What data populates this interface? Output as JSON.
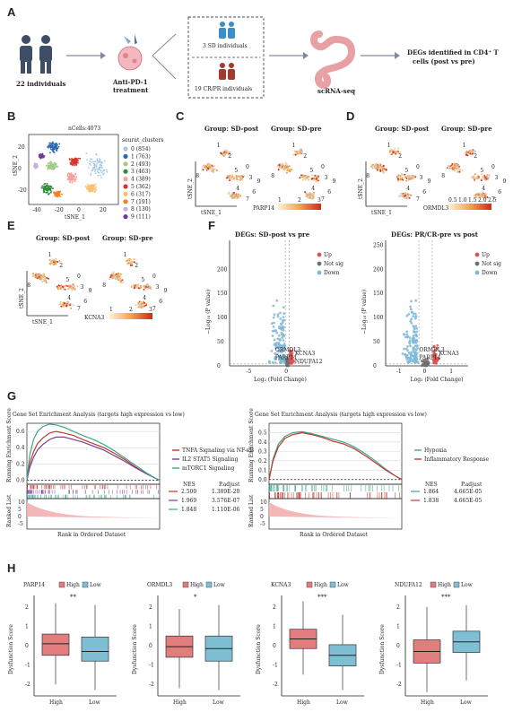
{
  "panels": {
    "A": {
      "label": "A",
      "n_individuals": "22 individuals",
      "treatment": [
        "Anti-PD-1",
        "treatment"
      ],
      "sd_group": "3 SD individuals",
      "cr_group": "19 CR/PR individuals",
      "assay": "scRNA-seq",
      "result": [
        "DEGs identified in CD4⁺ T",
        "cells (post vs pre)"
      ],
      "colors": {
        "people": "#3d4e66",
        "sd": "#3a8fc8",
        "cr": "#a33a2e",
        "colon": "#e8a0a4"
      }
    },
    "B": {
      "label": "B",
      "title": "nCells:4073",
      "legend_title": "seurat_clusters",
      "xlabel": "tSNE_1",
      "ylabel": "tSNE_2",
      "clusters": [
        {
          "label": "0 (854)",
          "color": "#a6c8e0"
        },
        {
          "label": "1 (763)",
          "color": "#2b6bb0"
        },
        {
          "label": "2 (493)",
          "color": "#9ccb86"
        },
        {
          "label": "3 (463)",
          "color": "#2e8b3a"
        },
        {
          "label": "4 (389)",
          "color": "#f4a1a0"
        },
        {
          "label": "5 (362)",
          "color": "#d9342b"
        },
        {
          "label": "6 (317)",
          "color": "#fbbf6f"
        },
        {
          "label": "7 (191)",
          "color": "#f58220"
        },
        {
          "label": "8 (130)",
          "color": "#c7b3d9"
        },
        {
          "label": "9 (111)",
          "color": "#6a3d9a"
        }
      ],
      "x_ticks": [
        "-40",
        "-20",
        "0",
        "20"
      ],
      "y_ticks": [
        "20",
        "0",
        "-20"
      ]
    },
    "C": {
      "label": "C",
      "titles": [
        "Group: SD-post",
        "Group: SD-pre"
      ],
      "gene": "PARP14",
      "scale": [
        "1",
        "2",
        "3"
      ],
      "xlabel": "tSNE_1",
      "ylabel": "tSNE_2"
    },
    "D": {
      "label": "D",
      "titles": [
        "Group: SD-post",
        "Group: SD-pre"
      ],
      "gene": "ORMDL3",
      "scale": [
        "0.5",
        "1.0",
        "1.5",
        "2.0",
        "2.5"
      ],
      "xlabel": "tSNE_1",
      "ylabel": "tSNE_2"
    },
    "E": {
      "label": "E",
      "titles": [
        "Group: SD-post",
        "Group: SD-pre"
      ],
      "gene": "KCNA3",
      "scale": [
        "1",
        "2",
        "3"
      ],
      "xlabel": "tSNE_1",
      "ylabel": "tSNE_2"
    },
    "F": {
      "label": "F"
    },
    "G": {
      "label": "G"
    },
    "H": {
      "label": "H"
    },
    "cluster_numbers": [
      "1",
      "8",
      "2",
      "5",
      "0",
      "3",
      "4",
      "6",
      "9",
      "7"
    ]
  },
  "chart_data": [
    {
      "type": "scatter",
      "panel": "F-left",
      "title": "DEGs: SD-post vs pre",
      "xlabel": "Log₂ (Fold Change)",
      "ylabel": "−Log₁₀ (P value)",
      "xlim": [
        -7.5,
        3
      ],
      "ylim": [
        0,
        260
      ],
      "x_ticks": [
        "-5",
        "0"
      ],
      "y_ticks": [
        "0",
        "50",
        "100",
        "150",
        "200"
      ],
      "legend": [
        "Up",
        "Not sig",
        "Down"
      ],
      "legend_placement": "right",
      "colors": {
        "Up": "#d9534f",
        "Not sig": "#6e6e6e",
        "Down": "#7fb8d8"
      },
      "labels": [
        "ORMDL3",
        "KCNA3",
        "PARP14",
        "NDUFA12"
      ]
    },
    {
      "type": "scatter",
      "panel": "F-right",
      "title": "DEGs: PR/CR-pre vs post",
      "xlabel": "Log₂ (Fold Change)",
      "ylabel": "−Log₁₀ (P value)",
      "xlim": [
        -1.5,
        1.6
      ],
      "ylim": [
        0,
        260
      ],
      "x_ticks": [
        "-1",
        "0",
        "1"
      ],
      "y_ticks": [
        "0",
        "50",
        "100",
        "150",
        "200",
        "250"
      ],
      "legend": [
        "Up",
        "Not sig",
        "Down"
      ],
      "legend_placement": "right",
      "colors": {
        "Up": "#d9534f",
        "Not sig": "#6e6e6e",
        "Down": "#7fb8d8"
      },
      "labels": [
        "ORMDL3",
        "KCNA3",
        "PARP14"
      ]
    },
    {
      "type": "line",
      "panel": "G-left",
      "title": "Gene Set Enrichment Analysis (targets high expression vs low)",
      "ylabel": "Running Enrichment Score",
      "ylabel2": "Ranked List",
      "xlabel": "Rank in Ordered Dataset",
      "ylim": [
        -0.05,
        0.7
      ],
      "y_ticks": [
        "0.0",
        "0.2",
        "0.4",
        "0.6"
      ],
      "rank_ticks": [
        "10",
        "5",
        "0",
        "-5"
      ],
      "stats_header": [
        "NES",
        "P.adjust"
      ],
      "series": [
        {
          "name": "TNFA Signaling via NF-κB",
          "color": "#c0392b",
          "nes": "2.500",
          "padj": "1.389E-20",
          "x": [
            0,
            0.02,
            0.05,
            0.08,
            0.12,
            0.17,
            0.22,
            0.28,
            0.35,
            0.42,
            0.5,
            0.58,
            0.66,
            0.74,
            0.82,
            0.9,
            0.96,
            1
          ],
          "values": [
            0,
            0.2,
            0.35,
            0.45,
            0.52,
            0.58,
            0.6,
            0.58,
            0.55,
            0.5,
            0.45,
            0.4,
            0.33,
            0.25,
            0.16,
            0.08,
            0.03,
            0
          ]
        },
        {
          "name": "IL2 STAT5 Signaling",
          "color": "#7d3c98",
          "nes": "1.969",
          "padj": "3.576E-07",
          "x": [
            0,
            0.02,
            0.05,
            0.08,
            0.12,
            0.17,
            0.22,
            0.28,
            0.35,
            0.42,
            0.5,
            0.58,
            0.66,
            0.74,
            0.82,
            0.9,
            0.96,
            1
          ],
          "values": [
            0,
            0.15,
            0.28,
            0.37,
            0.44,
            0.5,
            0.53,
            0.53,
            0.5,
            0.47,
            0.42,
            0.37,
            0.3,
            0.23,
            0.15,
            0.08,
            0.03,
            0
          ]
        },
        {
          "name": "mTORC1 Signaling",
          "color": "#3aa88a",
          "nes": "1.848",
          "padj": "1.110E-06",
          "x": [
            0,
            0.02,
            0.05,
            0.08,
            0.12,
            0.17,
            0.22,
            0.28,
            0.35,
            0.42,
            0.5,
            0.58,
            0.66,
            0.74,
            0.82,
            0.9,
            0.96,
            1
          ],
          "values": [
            0,
            0.3,
            0.5,
            0.6,
            0.66,
            0.69,
            0.68,
            0.65,
            0.6,
            0.55,
            0.5,
            0.44,
            0.36,
            0.27,
            0.18,
            0.09,
            0.03,
            0
          ]
        }
      ]
    },
    {
      "type": "line",
      "panel": "G-right",
      "title": "Gene Set Enrichment Analysis (targets high expression vs low)",
      "ylabel": "Running Enrichment Score",
      "ylabel2": "Ranked List",
      "xlabel": "Rank in Ordered Dataset",
      "ylim": [
        -0.05,
        0.6
      ],
      "y_ticks": [
        "0.0",
        "0.1",
        "0.2",
        "0.3",
        "0.4",
        "0.5"
      ],
      "rank_ticks": [
        "10",
        "5",
        "0",
        "-5"
      ],
      "stats_header": [
        "NES",
        "P.adjust"
      ],
      "series": [
        {
          "name": "Hypoxia",
          "color": "#3aa88a",
          "nes": "1.864",
          "padj": "4.665E-05",
          "x": [
            0,
            0.03,
            0.07,
            0.12,
            0.18,
            0.25,
            0.32,
            0.4,
            0.48,
            0.56,
            0.64,
            0.72,
            0.8,
            0.88,
            0.95,
            1
          ],
          "values": [
            0,
            0.22,
            0.38,
            0.46,
            0.5,
            0.51,
            0.49,
            0.46,
            0.43,
            0.4,
            0.35,
            0.28,
            0.2,
            0.11,
            0.04,
            0
          ]
        },
        {
          "name": "Inflammatory Response",
          "color": "#c0392b",
          "nes": "1.838",
          "padj": "4.665E-05",
          "x": [
            0,
            0.03,
            0.07,
            0.12,
            0.18,
            0.25,
            0.32,
            0.4,
            0.48,
            0.56,
            0.64,
            0.72,
            0.8,
            0.88,
            0.95,
            1
          ],
          "values": [
            0,
            0.2,
            0.35,
            0.44,
            0.48,
            0.5,
            0.48,
            0.45,
            0.41,
            0.38,
            0.33,
            0.26,
            0.18,
            0.1,
            0.04,
            0
          ]
        }
      ]
    },
    {
      "type": "box",
      "panel": "H",
      "ylabel": "Dysfunction Score",
      "legend": [
        "High",
        "Low"
      ],
      "colors": {
        "High": "#e27d7d",
        "Low": "#7fbfd3"
      },
      "y_ticks": [
        "-2",
        "-1",
        "0",
        "1",
        "2"
      ],
      "ylim": [
        -2.6,
        2.6
      ],
      "groups": [
        {
          "gene": "PARP14",
          "sig": "**",
          "boxes": [
            {
              "name": "High",
              "min": -2.0,
              "q1": -0.5,
              "median": 0.1,
              "q3": 0.6,
              "max": 2.2
            },
            {
              "name": "Low",
              "min": -2.3,
              "q1": -0.8,
              "median": -0.3,
              "q3": 0.45,
              "max": 2.1
            }
          ]
        },
        {
          "gene": "ORMDL3",
          "sig": "*",
          "boxes": [
            {
              "name": "High",
              "min": -2.2,
              "q1": -0.6,
              "median": -0.05,
              "q3": 0.5,
              "max": 1.9
            },
            {
              "name": "Low",
              "min": -2.3,
              "q1": -0.8,
              "median": -0.15,
              "q3": 0.5,
              "max": 2.1
            }
          ]
        },
        {
          "gene": "KCNA3",
          "sig": "***",
          "boxes": [
            {
              "name": "High",
              "min": -1.5,
              "q1": -0.15,
              "median": 0.35,
              "q3": 0.85,
              "max": 2.3
            },
            {
              "name": "Low",
              "min": -2.3,
              "q1": -1.05,
              "median": -0.5,
              "q3": 0.05,
              "max": 1.6
            }
          ]
        },
        {
          "gene": "NDUFA12",
          "sig": "***",
          "boxes": [
            {
              "name": "High",
              "min": -2.4,
              "q1": -0.9,
              "median": -0.3,
              "q3": 0.3,
              "max": 2.0
            },
            {
              "name": "Low",
              "min": -1.8,
              "q1": -0.35,
              "median": 0.2,
              "q3": 0.75,
              "max": 2.1
            }
          ]
        }
      ],
      "xlabels": [
        "High",
        "Low"
      ]
    }
  ]
}
